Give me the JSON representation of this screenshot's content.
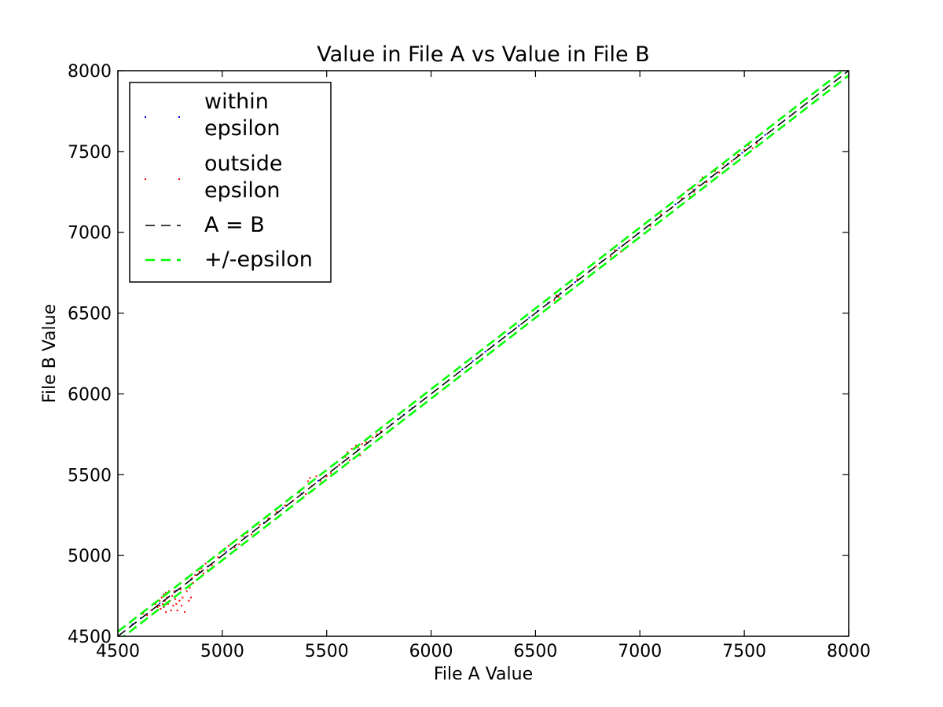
{
  "chart_data": {
    "type": "scatter",
    "title": "Value in File A vs Value in File B",
    "xlabel": "File A Value",
    "ylabel": "File B Value",
    "xlim": [
      4500,
      8000
    ],
    "ylim": [
      4500,
      8000
    ],
    "xticks": [
      "4500",
      "5000",
      "5500",
      "6000",
      "6500",
      "7000",
      "7500",
      "8000"
    ],
    "yticks": [
      "4500",
      "5000",
      "5500",
      "6000",
      "6500",
      "7000",
      "7500",
      "8000"
    ],
    "grid": false,
    "legend_position": "top-left",
    "legend": [
      {
        "label": "within\nepsilon",
        "marker": "point",
        "color": "#0000ff"
      },
      {
        "label": "outside\nepsilon",
        "marker": "point",
        "color": "#ff0000"
      },
      {
        "label": "A = B",
        "marker": "dashed-line",
        "color": "#000000"
      },
      {
        "label": "+/-epsilon",
        "marker": "dashed-line",
        "color": "#00ff00"
      }
    ],
    "series": [
      {
        "name": "within epsilon",
        "color": "#0000ff",
        "points": [
          [
            4570,
            4575
          ],
          [
            4610,
            4612
          ],
          [
            4700,
            4703
          ],
          [
            4780,
            4783
          ],
          [
            4850,
            4852
          ],
          [
            4930,
            4933
          ],
          [
            5020,
            5022
          ],
          [
            5110,
            5113
          ],
          [
            5200,
            5202
          ],
          [
            5290,
            5293
          ],
          [
            5380,
            5382
          ],
          [
            5460,
            5463
          ],
          [
            5560,
            5562
          ],
          [
            5650,
            5653
          ],
          [
            5760,
            5762
          ],
          [
            5810,
            5812
          ],
          [
            5840,
            5843
          ],
          [
            5870,
            5872
          ],
          [
            5910,
            5913
          ],
          [
            6150,
            6152
          ],
          [
            6200,
            6203
          ],
          [
            6260,
            6262
          ],
          [
            6300,
            6302
          ],
          [
            6370,
            6373
          ],
          [
            6420,
            6422
          ],
          [
            6470,
            6472
          ],
          [
            6510,
            6513
          ],
          [
            6560,
            6562
          ],
          [
            6620,
            6623
          ],
          [
            6690,
            6692
          ],
          [
            6760,
            6762
          ],
          [
            6820,
            6822
          ],
          [
            6900,
            6903
          ],
          [
            6990,
            6992
          ],
          [
            7080,
            7082
          ],
          [
            7170,
            7173
          ],
          [
            7260,
            7262
          ],
          [
            7340,
            7342
          ],
          [
            7420,
            7423
          ],
          [
            7490,
            7492
          ],
          [
            7560,
            7562
          ],
          [
            7600,
            7603
          ]
        ]
      },
      {
        "name": "outside epsilon",
        "color": "#ff0000",
        "points": [
          [
            4620,
            4640
          ],
          [
            4640,
            4630
          ],
          [
            4660,
            4660
          ],
          [
            4680,
            4700
          ],
          [
            4690,
            4680
          ],
          [
            4700,
            4720
          ],
          [
            4700,
            4690
          ],
          [
            4705,
            4670
          ],
          [
            4710,
            4740
          ],
          [
            4715,
            4700
          ],
          [
            4720,
            4760
          ],
          [
            4720,
            4680
          ],
          [
            4725,
            4720
          ],
          [
            4730,
            4770
          ],
          [
            4730,
            4650
          ],
          [
            4735,
            4740
          ],
          [
            4740,
            4700
          ],
          [
            4745,
            4780
          ],
          [
            4750,
            4720
          ],
          [
            4755,
            4660
          ],
          [
            4760,
            4750
          ],
          [
            4765,
            4690
          ],
          [
            4770,
            4780
          ],
          [
            4775,
            4730
          ],
          [
            4780,
            4700
          ],
          [
            4785,
            4660
          ],
          [
            4790,
            4760
          ],
          [
            4795,
            4720
          ],
          [
            4800,
            4790
          ],
          [
            4805,
            4690
          ],
          [
            4810,
            4740
          ],
          [
            4820,
            4650
          ],
          [
            4830,
            4780
          ],
          [
            4840,
            4720
          ],
          [
            4845,
            4800
          ],
          [
            4850,
            4740
          ],
          [
            4855,
            4860
          ],
          [
            4860,
            4830
          ],
          [
            4870,
            4880
          ],
          [
            4880,
            4850
          ],
          [
            4890,
            4900
          ],
          [
            4900,
            4920
          ],
          [
            4910,
            4890
          ],
          [
            4920,
            4950
          ],
          [
            4930,
            4910
          ],
          [
            4950,
            4940
          ],
          [
            4980,
            4990
          ],
          [
            5010,
            5030
          ],
          [
            5030,
            5060
          ],
          [
            5050,
            5080
          ],
          [
            5060,
            5050
          ],
          [
            5070,
            5100
          ],
          [
            5080,
            5070
          ],
          [
            5100,
            5120
          ],
          [
            5120,
            5140
          ],
          [
            5140,
            5130
          ],
          [
            5180,
            5190
          ],
          [
            5220,
            5230
          ],
          [
            5260,
            5270
          ],
          [
            5300,
            5310
          ],
          [
            5340,
            5340
          ],
          [
            5370,
            5390
          ],
          [
            5390,
            5420
          ],
          [
            5400,
            5380
          ],
          [
            5410,
            5460
          ],
          [
            5420,
            5480
          ],
          [
            5430,
            5430
          ],
          [
            5450,
            5490
          ],
          [
            5470,
            5460
          ],
          [
            5500,
            5490
          ],
          [
            5520,
            5510
          ],
          [
            5560,
            5560
          ],
          [
            5590,
            5610
          ],
          [
            5600,
            5640
          ],
          [
            5610,
            5590
          ],
          [
            5620,
            5660
          ],
          [
            5630,
            5600
          ],
          [
            5640,
            5680
          ],
          [
            5650,
            5670
          ],
          [
            5660,
            5620
          ],
          [
            5670,
            5690
          ],
          [
            5690,
            5700
          ],
          [
            5720,
            5730
          ],
          [
            5740,
            5750
          ],
          [
            5760,
            5770
          ],
          [
            6590,
            6580
          ],
          [
            6600,
            6610
          ],
          [
            6610,
            6600
          ],
          [
            6700,
            6710
          ],
          [
            6790,
            6790
          ],
          [
            6860,
            6850
          ],
          [
            6880,
            6890
          ],
          [
            6910,
            6880
          ],
          [
            6950,
            6950
          ],
          [
            7050,
            7040
          ],
          [
            7100,
            7110
          ],
          [
            7150,
            7150
          ],
          [
            7200,
            7210
          ],
          [
            7230,
            7260
          ],
          [
            7240,
            7220
          ],
          [
            7250,
            7270
          ],
          [
            7260,
            7250
          ],
          [
            7280,
            7290
          ],
          [
            7300,
            7340
          ],
          [
            7320,
            7310
          ],
          [
            7360,
            7380
          ],
          [
            7380,
            7370
          ],
          [
            7400,
            7420
          ],
          [
            7440,
            7440
          ],
          [
            7470,
            7480
          ],
          [
            7500,
            7510
          ],
          [
            7520,
            7540
          ],
          [
            7540,
            7520
          ],
          [
            7560,
            7550
          ],
          [
            7580,
            7580
          ]
        ]
      },
      {
        "name": "A = B",
        "color": "#000000",
        "points": [
          [
            4500,
            4500
          ],
          [
            8000,
            8000
          ]
        ]
      },
      {
        "name": "+/-epsilon",
        "color": "#00ff00",
        "points": [
          [
            4500,
            4500
          ],
          [
            8000,
            8000
          ]
        ]
      }
    ]
  }
}
